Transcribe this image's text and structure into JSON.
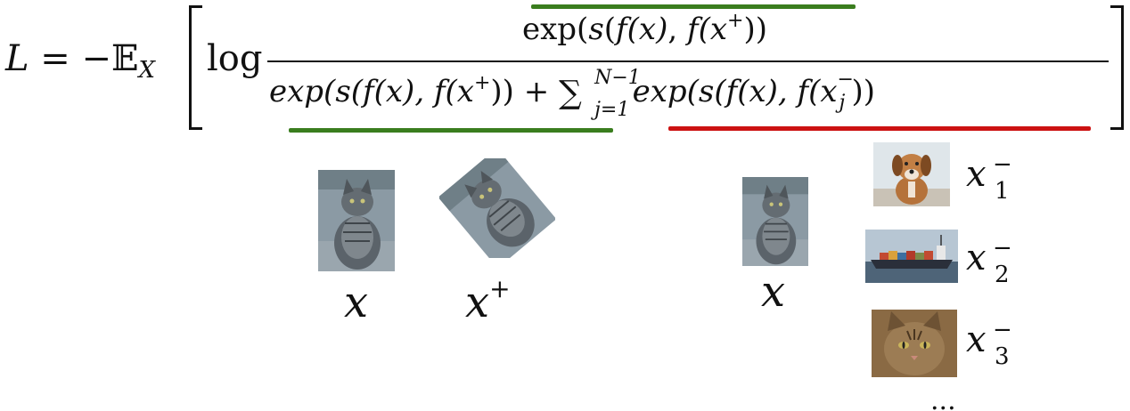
{
  "equation": {
    "lhs": "L",
    "equals": "=",
    "minus": "−",
    "expect": "𝔼",
    "expect_sub": "X",
    "log": "log",
    "numerator": {
      "exp": "exp(",
      "s": "s",
      "open": "(",
      "f1": "f",
      "x1": "(x)",
      "comma": ", ",
      "f2": "f",
      "x2open": "(x",
      "plus_sup": "+",
      "close": "))"
    },
    "denominator": {
      "term1": "exp(s(f(x), f(x",
      "term1_sup": "+",
      "term1_close": "))",
      "plus": "+",
      "sum": "∑",
      "sum_upper": "N−1",
      "sum_lower": "j=1",
      "term2": "exp(s(f(x), f(x",
      "term2_sup": "−",
      "term2_sub": "j",
      "term2_close": "))"
    },
    "colors": {
      "positive_underline": "#3a7d1e",
      "negative_underline": "#cc1111"
    }
  },
  "labels": {
    "anchor_left": "x",
    "positive": "x",
    "positive_sup": "+",
    "anchor_right": "x",
    "neg1": "x",
    "neg1_sup": "−",
    "neg1_sub": "1",
    "neg2": "x",
    "neg2_sup": "−",
    "neg2_sub": "2",
    "neg3": "x",
    "neg3_sup": "−",
    "neg3_sub": "3",
    "more": "..."
  },
  "images": {
    "anchor_left": "cat-photo",
    "positive": "rotated-cat-photo",
    "anchor_right": "cat-photo",
    "neg1": "dog-photo",
    "neg2": "ship-photo",
    "neg3": "cat-face-photo"
  }
}
